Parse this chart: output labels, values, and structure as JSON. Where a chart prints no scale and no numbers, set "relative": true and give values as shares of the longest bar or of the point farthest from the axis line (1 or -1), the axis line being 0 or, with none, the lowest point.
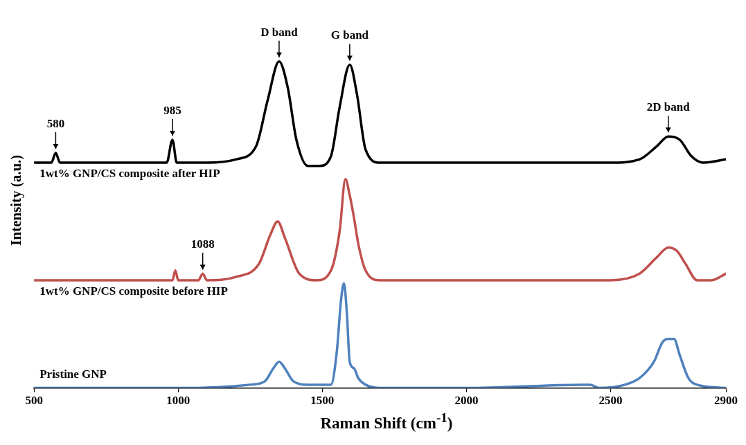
{
  "chart_data": {
    "type": "line",
    "relative": true,
    "xlabel": "Raman Shift (cm$^{-1}$)",
    "ylabel": "Intensity (a.u.)",
    "xlim": [
      500,
      2900
    ],
    "xticks": [
      500,
      1000,
      1500,
      2000,
      2500,
      2900
    ],
    "grid": false,
    "legend": false,
    "marker": "none",
    "line_style": "solid",
    "series": [
      {
        "name": "1wt% GNP/CS composite after HIP",
        "color": "#000000",
        "x": [
          500,
          560,
          575,
          590,
          960,
          980,
          995,
          1100,
          1200,
          1270,
          1310,
          1350,
          1380,
          1410,
          1450,
          1490,
          1530,
          1560,
          1595,
          1620,
          1650,
          1700,
          2000,
          2500,
          2600,
          2660,
          2700,
          2740,
          2780,
          2820,
          2900
        ],
        "values": [
          0.69,
          0.69,
          0.72,
          0.69,
          0.69,
          0.76,
          0.69,
          0.69,
          0.7,
          0.74,
          0.88,
          1.0,
          0.92,
          0.76,
          0.68,
          0.68,
          0.71,
          0.86,
          0.99,
          0.9,
          0.73,
          0.69,
          0.69,
          0.69,
          0.7,
          0.74,
          0.77,
          0.76,
          0.71,
          0.69,
          0.7
        ]
      },
      {
        "name": "1wt% GNP/CS composite before HIP",
        "color": "#c0504d",
        "x": [
          500,
          980,
          990,
          1000,
          1070,
          1085,
          1100,
          1200,
          1280,
          1320,
          1345,
          1370,
          1420,
          1480,
          1530,
          1560,
          1580,
          1595,
          1610,
          1625,
          1650,
          1700,
          2000,
          2500,
          2600,
          2660,
          2700,
          2730,
          2760,
          2800,
          2850,
          2900
        ],
        "values": [
          0.33,
          0.33,
          0.36,
          0.33,
          0.33,
          0.35,
          0.33,
          0.34,
          0.38,
          0.47,
          0.51,
          0.46,
          0.35,
          0.33,
          0.36,
          0.48,
          0.64,
          0.59,
          0.52,
          0.44,
          0.36,
          0.33,
          0.33,
          0.33,
          0.35,
          0.4,
          0.43,
          0.42,
          0.38,
          0.33,
          0.33,
          0.35
        ]
      },
      {
        "name": "Pristine GNP",
        "color": "#4f81bd",
        "x": [
          500,
          1000,
          1250,
          1300,
          1330,
          1350,
          1370,
          1400,
          1450,
          1530,
          1550,
          1565,
          1575,
          1585,
          1595,
          1610,
          1625,
          1650,
          1700,
          2000,
          2400,
          2430,
          2460,
          2550,
          2600,
          2650,
          2680,
          2700,
          2720,
          2740,
          2770,
          2800,
          2900
        ],
        "values": [
          0.0,
          0.0,
          0.01,
          0.02,
          0.06,
          0.08,
          0.06,
          0.02,
          0.01,
          0.01,
          0.11,
          0.27,
          0.32,
          0.23,
          0.08,
          0.06,
          0.03,
          0.01,
          0.0,
          0.0,
          0.01,
          0.01,
          0.0,
          0.01,
          0.03,
          0.08,
          0.14,
          0.15,
          0.15,
          0.1,
          0.03,
          0.01,
          0.0
        ]
      }
    ],
    "annotations": [
      {
        "text": "580",
        "x": 575,
        "y": 0.72
      },
      {
        "text": "985",
        "x": 980,
        "y": 0.76
      },
      {
        "text": "1088",
        "x": 1085,
        "y": 0.35
      },
      {
        "text": "D band",
        "x": 1350,
        "y": 1.0
      },
      {
        "text": "G band",
        "x": 1595,
        "y": 0.99
      },
      {
        "text": "2D band",
        "x": 2700,
        "y": 0.77
      }
    ]
  }
}
